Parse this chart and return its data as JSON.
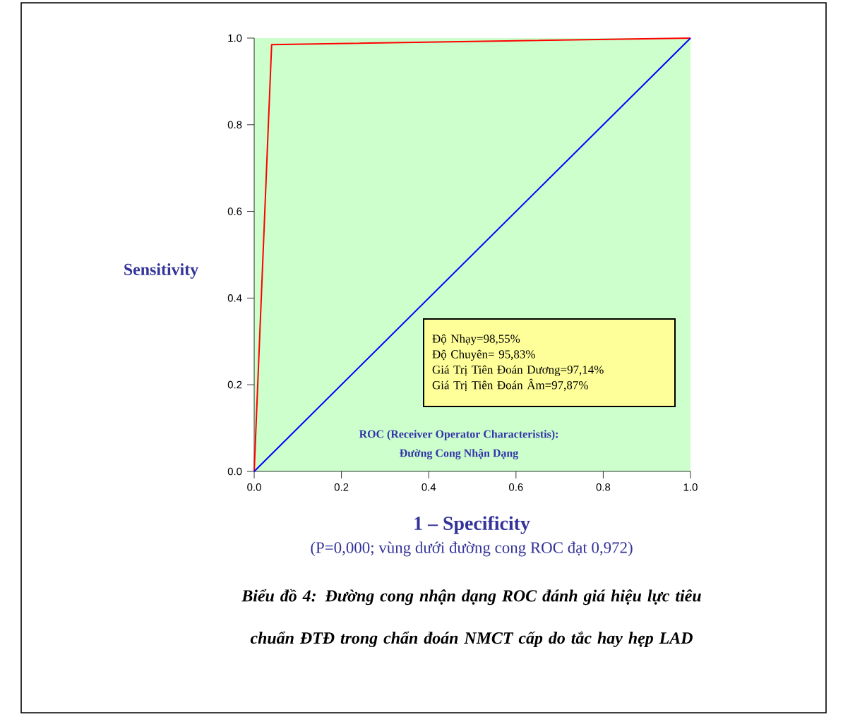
{
  "chart_data": {
    "type": "line",
    "xlabel": "1 – Specificity",
    "ylabel": "Sensitivity",
    "xlim": [
      0,
      1
    ],
    "ylim": [
      0,
      1
    ],
    "xticks": [
      {
        "value": 0,
        "label": "0.0"
      },
      {
        "value": 0.2,
        "label": "0.2"
      },
      {
        "value": 0.4,
        "label": "0.4"
      },
      {
        "value": 0.6,
        "label": "0.6"
      },
      {
        "value": 0.8,
        "label": "0.8"
      },
      {
        "value": 1,
        "label": "1.0"
      }
    ],
    "yticks": [
      {
        "value": 0,
        "label": "0.0"
      },
      {
        "value": 0.2,
        "label": "0.2"
      },
      {
        "value": 0.4,
        "label": "0.4"
      },
      {
        "value": 0.6,
        "label": "0.6"
      },
      {
        "value": 0.8,
        "label": "0.8"
      },
      {
        "value": 1,
        "label": "1.0"
      }
    ],
    "grid": false,
    "marker": "none",
    "line_style": "solid",
    "series": [
      {
        "color": "#ff0000",
        "x": [
          0,
          0.04,
          1
        ],
        "values": [
          0,
          0.985,
          1
        ]
      },
      {
        "color": "#0000ff",
        "x": [
          0,
          1
        ],
        "values": [
          0,
          1
        ]
      }
    ],
    "annotations": [
      "Độ Nhạy=98,55%",
      "Độ Chuyên= 95,83%",
      "Giá Trị Tiên Đoán Dương=97,14%",
      "Giá Trị Tiên Đoán Âm=97,87%",
      "ROC (Receiver Operator Characteristis):",
      "Đường Cong Nhận Dạng",
      "(P=0,000; vùng dưới đường cong ROC đạt 0,972)",
      "Biểu đồ 4: Đường cong nhận dạng ROC đánh giá hiệu lực tiêu chuẩn ĐTĐ trong chẩn đoán NMCT cấp do tắc hay hẹp LAD"
    ]
  }
}
